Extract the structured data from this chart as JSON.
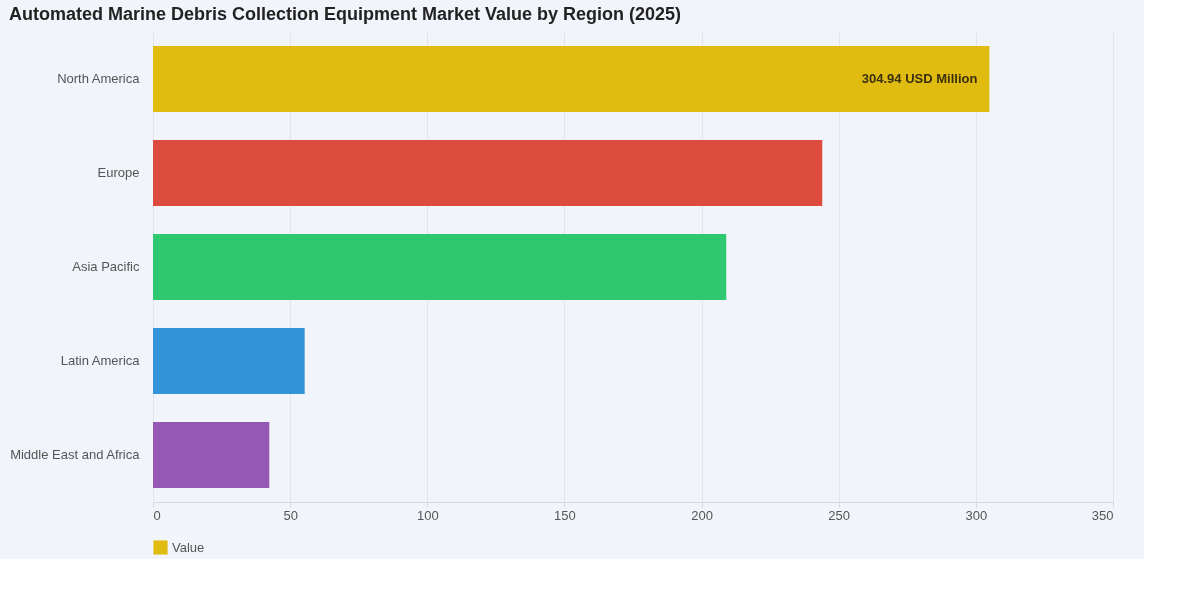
{
  "chart_data": {
    "type": "bar",
    "orientation": "horizontal",
    "title": "Automated Marine Debris Collection Equipment Market Value by Region (2025)",
    "categories": [
      "North America",
      "Europe",
      "Asia Pacific",
      "Latin America",
      "Middle East and Africa"
    ],
    "series": [
      {
        "name": "Value",
        "values": [
          304.94,
          244,
          209,
          55.3,
          42.4
        ]
      }
    ],
    "colors": [
      "#e0bc10",
      "#dd4b3e",
      "#2ec871",
      "#3394d9",
      "#9558b5"
    ],
    "value_labels": [
      "304.94 USD Million",
      null,
      null,
      null,
      null
    ],
    "xlim": [
      0,
      350
    ],
    "xticks": [
      0,
      50,
      100,
      150,
      200,
      250,
      300,
      350
    ],
    "grid": "x",
    "legend": "bottom"
  }
}
